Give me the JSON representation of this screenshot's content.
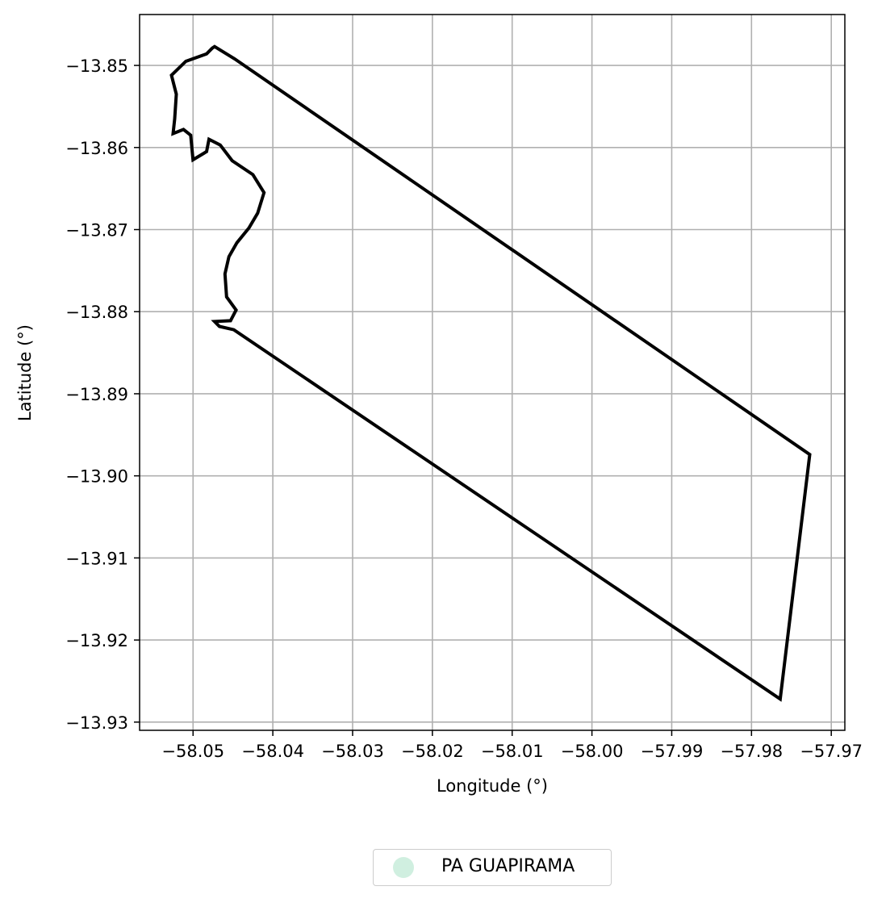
{
  "chart_data": {
    "type": "map",
    "xlabel": "Longitude (°)",
    "ylabel": "Latitude (°)",
    "xlim": [
      -58.0567,
      -57.9683
    ],
    "ylim": [
      -13.931,
      -13.8438
    ],
    "grid": true,
    "legend_position": "bottom-center",
    "x_ticks": [
      -58.05,
      -58.04,
      -58.03,
      -58.02,
      -58.01,
      -58.0,
      -57.99,
      -57.98,
      -57.97
    ],
    "x_tick_labels": [
      "−58.05",
      "−58.04",
      "−58.03",
      "−58.02",
      "−58.01",
      "−58.00",
      "−57.99",
      "−57.98",
      "−57.97"
    ],
    "y_ticks": [
      -13.85,
      -13.86,
      -13.87,
      -13.88,
      -13.89,
      -13.9,
      -13.91,
      -13.92,
      -13.93
    ],
    "y_tick_labels": [
      "−13.85",
      "−13.86",
      "−13.87",
      "−13.88",
      "−13.89",
      "−13.90",
      "−13.91",
      "−13.92",
      "−13.93"
    ],
    "series": [
      {
        "name": "PA GUAPIRAMA",
        "legend_color": "#d0efe0",
        "outline_color": "#000000",
        "coordinates": [
          [
            -58.0473,
            -13.8477
          ],
          [
            -58.0448,
            -13.8492
          ],
          [
            -57.9727,
            -13.8974
          ],
          [
            -57.9764,
            -13.9272
          ],
          [
            -58.0449,
            -13.8822
          ],
          [
            -58.0467,
            -13.8818
          ],
          [
            -58.0473,
            -13.8812
          ],
          [
            -58.0453,
            -13.8811
          ],
          [
            -58.0446,
            -13.8798
          ],
          [
            -58.0458,
            -13.8782
          ],
          [
            -58.046,
            -13.8754
          ],
          [
            -58.0455,
            -13.8733
          ],
          [
            -58.0445,
            -13.8716
          ],
          [
            -58.043,
            -13.8698
          ],
          [
            -58.0419,
            -13.868
          ],
          [
            -58.0411,
            -13.8655
          ],
          [
            -58.0425,
            -13.8633
          ],
          [
            -58.0451,
            -13.8616
          ],
          [
            -58.0466,
            -13.8597
          ],
          [
            -58.048,
            -13.859
          ],
          [
            -58.0483,
            -13.8605
          ],
          [
            -58.05,
            -13.8615
          ],
          [
            -58.0503,
            -13.8585
          ],
          [
            -58.0512,
            -13.8578
          ],
          [
            -58.0525,
            -13.8583
          ],
          [
            -58.0523,
            -13.8565
          ],
          [
            -58.0521,
            -13.8535
          ],
          [
            -58.0527,
            -13.8512
          ],
          [
            -58.0509,
            -13.8495
          ],
          [
            -58.0483,
            -13.8486
          ],
          [
            -58.0476,
            -13.8479
          ],
          [
            -58.0473,
            -13.8477
          ]
        ]
      }
    ]
  }
}
